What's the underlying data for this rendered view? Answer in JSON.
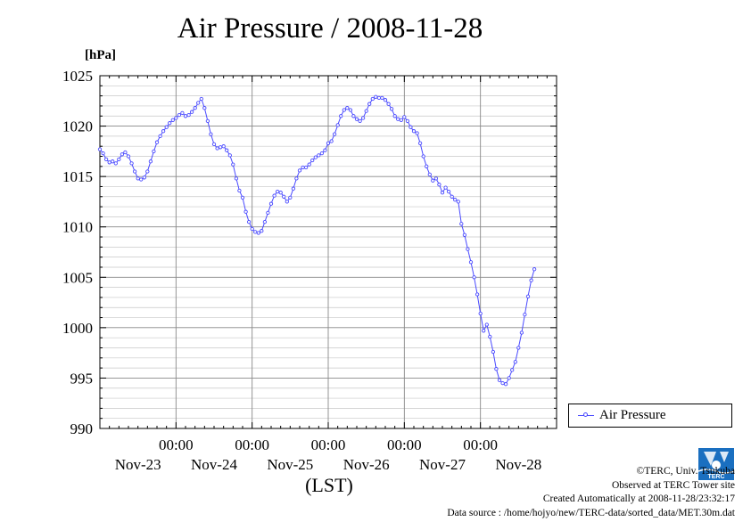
{
  "chart_data": {
    "type": "line",
    "title": "Air Pressure / 2008-11-28",
    "ylabel": "[hPa]",
    "xlabel": "(LST)",
    "ylim": [
      990,
      1025
    ],
    "yticks": [
      990,
      995,
      1000,
      1005,
      1010,
      1015,
      1020,
      1025
    ],
    "xlim": [
      0,
      144
    ],
    "x_tick_hours": [
      24,
      48,
      72,
      96,
      120
    ],
    "x_tick_time_label": "00:00",
    "day_labels": [
      "Nov-23",
      "Nov-24",
      "Nov-25",
      "Nov-26",
      "Nov-27",
      "Nov-28"
    ],
    "series_color": "#4a4aff",
    "grid": true,
    "legend_position": "right",
    "series": [
      {
        "name": "Air Pressure",
        "points": [
          [
            0,
            1017.7
          ],
          [
            1,
            1017.3
          ],
          [
            2,
            1016.7
          ],
          [
            3,
            1016.4
          ],
          [
            4,
            1016.5
          ],
          [
            5,
            1016.3
          ],
          [
            6,
            1016.7
          ],
          [
            7,
            1017.2
          ],
          [
            8,
            1017.4
          ],
          [
            9,
            1017.0
          ],
          [
            10,
            1016.3
          ],
          [
            11,
            1015.5
          ],
          [
            12,
            1014.8
          ],
          [
            13,
            1014.7
          ],
          [
            14,
            1014.9
          ],
          [
            15,
            1015.5
          ],
          [
            16,
            1016.5
          ],
          [
            17,
            1017.5
          ],
          [
            18,
            1018.4
          ],
          [
            19,
            1019.0
          ],
          [
            20,
            1019.5
          ],
          [
            21,
            1019.9
          ],
          [
            22,
            1020.3
          ],
          [
            23,
            1020.6
          ],
          [
            24,
            1020.8
          ],
          [
            25,
            1021.1
          ],
          [
            26,
            1021.3
          ],
          [
            27,
            1021.0
          ],
          [
            28,
            1021.1
          ],
          [
            29,
            1021.4
          ],
          [
            30,
            1021.8
          ],
          [
            31,
            1022.3
          ],
          [
            32,
            1022.7
          ],
          [
            33,
            1021.8
          ],
          [
            34,
            1020.5
          ],
          [
            35,
            1019.2
          ],
          [
            36,
            1018.2
          ],
          [
            37,
            1017.8
          ],
          [
            38,
            1017.9
          ],
          [
            39,
            1018.0
          ],
          [
            40,
            1017.6
          ],
          [
            41,
            1017.1
          ],
          [
            42,
            1016.2
          ],
          [
            43,
            1014.8
          ],
          [
            44,
            1013.6
          ],
          [
            45,
            1012.9
          ],
          [
            46,
            1011.5
          ],
          [
            47,
            1010.5
          ],
          [
            48,
            1009.8
          ],
          [
            49,
            1009.5
          ],
          [
            50,
            1009.4
          ],
          [
            51,
            1009.6
          ],
          [
            52,
            1010.5
          ],
          [
            53,
            1011.4
          ],
          [
            54,
            1012.3
          ],
          [
            55,
            1013.1
          ],
          [
            56,
            1013.5
          ],
          [
            57,
            1013.4
          ],
          [
            58,
            1013.0
          ],
          [
            59,
            1012.5
          ],
          [
            60,
            1012.9
          ],
          [
            61,
            1013.8
          ],
          [
            62,
            1014.8
          ],
          [
            63,
            1015.6
          ],
          [
            64,
            1015.9
          ],
          [
            65,
            1015.9
          ],
          [
            66,
            1016.2
          ],
          [
            67,
            1016.6
          ],
          [
            68,
            1016.9
          ],
          [
            69,
            1017.1
          ],
          [
            70,
            1017.3
          ],
          [
            71,
            1017.6
          ],
          [
            72,
            1018.3
          ],
          [
            73,
            1018.5
          ],
          [
            74,
            1019.2
          ],
          [
            75,
            1020.1
          ],
          [
            76,
            1021.0
          ],
          [
            77,
            1021.6
          ],
          [
            78,
            1021.8
          ],
          [
            79,
            1021.6
          ],
          [
            80,
            1021.0
          ],
          [
            81,
            1020.7
          ],
          [
            82,
            1020.5
          ],
          [
            83,
            1020.8
          ],
          [
            84,
            1021.5
          ],
          [
            85,
            1022.2
          ],
          [
            86,
            1022.7
          ],
          [
            87,
            1022.9
          ],
          [
            88,
            1022.8
          ],
          [
            89,
            1022.8
          ],
          [
            90,
            1022.6
          ],
          [
            91,
            1022.2
          ],
          [
            92,
            1021.7
          ],
          [
            93,
            1021.0
          ],
          [
            94,
            1020.7
          ],
          [
            95,
            1020.6
          ],
          [
            96,
            1020.9
          ],
          [
            97,
            1020.5
          ],
          [
            98,
            1019.9
          ],
          [
            99,
            1019.5
          ],
          [
            100,
            1019.3
          ],
          [
            101,
            1018.3
          ],
          [
            102,
            1017.0
          ],
          [
            103,
            1016.0
          ],
          [
            104,
            1015.2
          ],
          [
            105,
            1014.6
          ],
          [
            106,
            1014.8
          ],
          [
            107,
            1014.2
          ],
          [
            108,
            1013.4
          ],
          [
            109,
            1013.9
          ],
          [
            110,
            1013.5
          ],
          [
            111,
            1013.0
          ],
          [
            112,
            1012.7
          ],
          [
            113,
            1012.5
          ],
          [
            114,
            1010.3
          ],
          [
            115,
            1009.2
          ],
          [
            116,
            1007.8
          ],
          [
            117,
            1006.5
          ],
          [
            118,
            1005.0
          ],
          [
            119,
            1003.3
          ],
          [
            120,
            1001.4
          ],
          [
            121,
            999.7
          ],
          [
            122,
            1000.3
          ],
          [
            123,
            999.1
          ],
          [
            124,
            997.6
          ],
          [
            125,
            995.9
          ],
          [
            126,
            994.8
          ],
          [
            127,
            994.5
          ],
          [
            128,
            994.4
          ],
          [
            129,
            995.0
          ],
          [
            130,
            995.8
          ],
          [
            131,
            996.6
          ],
          [
            132,
            998.0
          ],
          [
            133,
            999.5
          ],
          [
            134,
            1001.3
          ],
          [
            135,
            1003.1
          ],
          [
            136,
            1004.7
          ],
          [
            137,
            1005.8
          ]
        ]
      }
    ]
  },
  "legend": {
    "label": "Air Pressure"
  },
  "credits": {
    "line1": "©TERC, Univ. Tsukuba",
    "line2": "Observed at TERC Tower site",
    "line3": "Created Automatically at 2008-11-28/23:32:17",
    "line4": "Data source : /home/hojyo/new/TERC-data/sorted_data/MET.30m.dat"
  },
  "logo": {
    "icon": "terc-logo-icon",
    "color": "#1a6fc0",
    "text": "TERC"
  }
}
